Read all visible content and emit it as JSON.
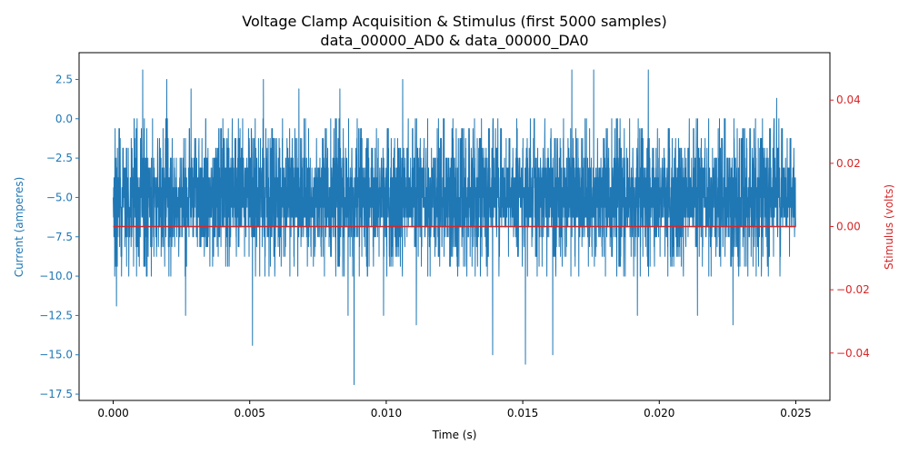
{
  "chart_data": {
    "type": "line",
    "title": "Voltage Clamp Acquisition & Stimulus (first 5000 samples)",
    "subtitle": "data_00000_AD0 & data_00000_DA0",
    "xlabel": "Time (s)",
    "ylabel_left": "Current (amperes)",
    "ylabel_right": "Stimulus (volts)",
    "xlim": [
      -0.00125,
      0.02625
    ],
    "ylim_left": [
      -17.9,
      4.2
    ],
    "ylim_right": [
      -0.055,
      0.055
    ],
    "x_ticks": [
      0.0,
      0.005,
      0.01,
      0.015,
      0.02,
      0.025
    ],
    "x_tick_labels": [
      "0.000",
      "0.005",
      "0.010",
      "0.015",
      "0.020",
      "0.025"
    ],
    "y_left_ticks": [
      2.5,
      0.0,
      -2.5,
      -5.0,
      -7.5,
      -10.0,
      -12.5,
      -15.0,
      -17.5
    ],
    "y_left_tick_labels": [
      "2.5",
      "0.0",
      "−2.5",
      "−5.0",
      "−7.5",
      "−10.0",
      "−12.5",
      "−15.0",
      "−17.5"
    ],
    "y_right_ticks": [
      0.04,
      0.02,
      0.0,
      -0.02,
      -0.04
    ],
    "y_right_tick_labels": [
      "0.04",
      "0.02",
      "0.00",
      "−0.02",
      "−0.04"
    ],
    "grid": false,
    "colors": {
      "current": "#1f77b4",
      "stimulus": "#d62728"
    },
    "series": [
      {
        "name": "data_00000_AD0",
        "axis": "left",
        "color": "#1f77b4",
        "sample_count": 5000,
        "x_range": [
          0.0,
          0.025
        ],
        "value_levels": [
          0.0,
          -0.625,
          -1.25,
          -1.875,
          -2.5,
          -3.125,
          -3.75,
          -4.375,
          -5.0,
          -5.625,
          -6.25,
          -6.875,
          -7.5,
          -8.125,
          -8.75,
          -9.375,
          -10.0
        ],
        "mean": -5.0,
        "typical_range": [
          -11.0,
          0.6
        ],
        "peaks": [
          {
            "x": 0.00108,
            "y": 3.1
          },
          {
            "x": 0.00285,
            "y": 1.9
          },
          {
            "x": 0.00196,
            "y": 2.5
          },
          {
            "x": 0.0055,
            "y": 2.5
          },
          {
            "x": 0.0068,
            "y": 1.9
          },
          {
            "x": 0.0083,
            "y": 1.9
          },
          {
            "x": 0.0106,
            "y": 2.5
          },
          {
            "x": 0.0176,
            "y": 3.1
          },
          {
            "x": 0.0168,
            "y": 3.1
          },
          {
            "x": 0.0196,
            "y": 3.1
          },
          {
            "x": 0.0243,
            "y": 1.3
          }
        ],
        "troughs": [
          {
            "x": 0.00012,
            "y": -11.9
          },
          {
            "x": 0.00265,
            "y": -12.5
          },
          {
            "x": 0.0051,
            "y": -14.4
          },
          {
            "x": 0.0086,
            "y": -12.5
          },
          {
            "x": 0.00882,
            "y": -16.9
          },
          {
            "x": 0.0099,
            "y": -12.5
          },
          {
            "x": 0.0111,
            "y": -13.1
          },
          {
            "x": 0.0139,
            "y": -15.0
          },
          {
            "x": 0.0151,
            "y": -15.6
          },
          {
            "x": 0.0161,
            "y": -15.0
          },
          {
            "x": 0.0192,
            "y": -12.5
          },
          {
            "x": 0.0214,
            "y": -12.5
          },
          {
            "x": 0.0227,
            "y": -13.1
          }
        ]
      },
      {
        "name": "data_00000_DA0",
        "axis": "right",
        "color": "#d62728",
        "x": [
          0.0,
          0.025
        ],
        "values": [
          0.0,
          0.0
        ]
      }
    ]
  }
}
